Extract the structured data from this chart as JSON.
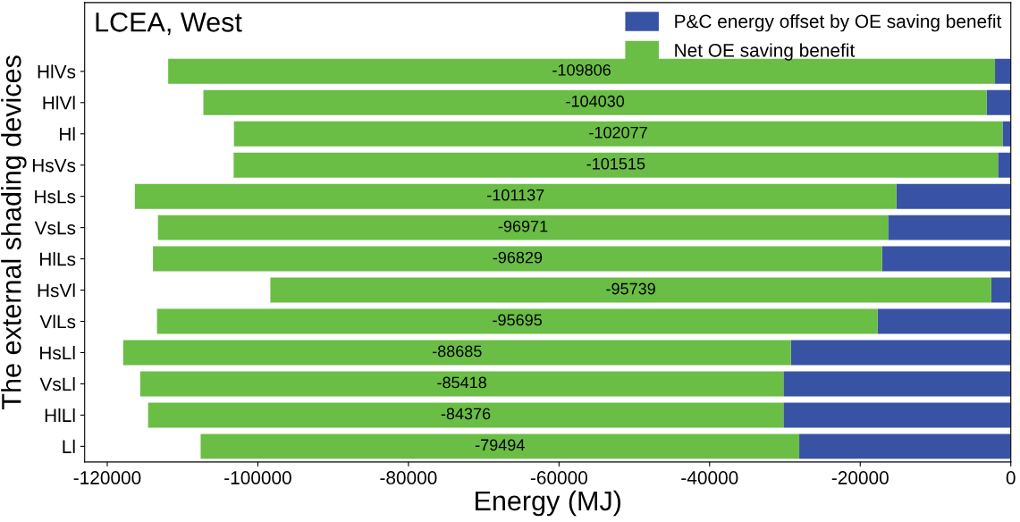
{
  "chart_data": {
    "type": "bar",
    "orientation": "horizontal",
    "stacked": true,
    "title": "LCEA, West",
    "xlabel": "Energy (MJ)",
    "ylabel": "The external shading devices",
    "categories": [
      "HlVs",
      "HlVl",
      "Hl",
      "HsVs",
      "HsLs",
      "VsLs",
      "HlLs",
      "HsVl",
      "VlLs",
      "HsLl",
      "VsLl",
      "HlLl",
      "Ll"
    ],
    "series": [
      {
        "name": "P&C energy offset by OE saving benefit",
        "color": "#3953a4",
        "values": [
          -2100,
          -3200,
          -1100,
          -1700,
          -15200,
          -16300,
          -17100,
          -2600,
          -17700,
          -29200,
          -30200,
          -30200,
          -28100
        ]
      },
      {
        "name": "Net OE saving benefit",
        "color": "#6abd45",
        "values": [
          -109806,
          -104030,
          -102077,
          -101515,
          -101137,
          -96971,
          -96829,
          -95739,
          -95695,
          -88685,
          -85418,
          -84376,
          -79494
        ],
        "value_labels": [
          "-109806",
          "-104030",
          "-102077",
          "-101515",
          "-101137",
          "-96971",
          "-96829",
          "-95739",
          "-95695",
          "-88685",
          "-85418",
          "-84376",
          "-79494"
        ]
      }
    ],
    "xlim": [
      -123000,
      0
    ],
    "xticks": [
      -120000,
      -100000,
      -80000,
      -60000,
      -40000,
      -20000,
      0
    ],
    "grid": false,
    "legend": "top right"
  }
}
